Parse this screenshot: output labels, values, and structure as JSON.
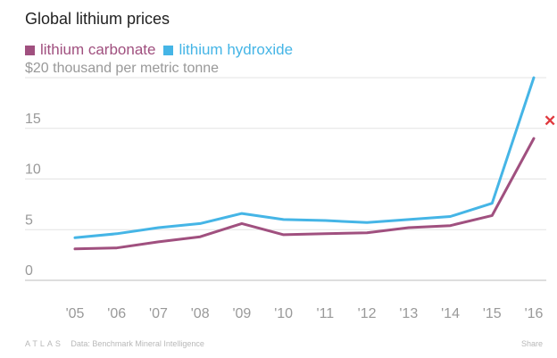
{
  "title": "Global lithium prices",
  "legend": {
    "items": [
      {
        "label": "lithium carbonate",
        "color": "#a0507f"
      },
      {
        "label": "lithium hydroxide",
        "color": "#45b5e6"
      }
    ]
  },
  "footer": {
    "brand": "ATLAS",
    "source": "Data: Benchmark Mineral Intelligence",
    "share": "Share"
  },
  "close_icon": "close-icon",
  "chart_data": {
    "type": "line",
    "title": "Global lithium prices",
    "ylabel": "$20 thousand per metric tonne",
    "xlabel": "",
    "categories": [
      "'05",
      "'06",
      "'07",
      "'08",
      "'09",
      "'10",
      "'11",
      "'12",
      "'13",
      "'14",
      "'15",
      "'16"
    ],
    "series": [
      {
        "name": "lithium carbonate",
        "color": "#a0507f",
        "values": [
          3.1,
          3.2,
          3.8,
          4.3,
          5.6,
          4.5,
          4.6,
          4.7,
          5.2,
          5.4,
          6.4,
          14.0
        ]
      },
      {
        "name": "lithium hydroxide",
        "color": "#45b5e6",
        "values": [
          4.2,
          4.6,
          5.2,
          5.6,
          6.6,
          6.0,
          5.9,
          5.7,
          6.0,
          6.3,
          7.6,
          20.0
        ]
      }
    ],
    "yticks": [
      "0",
      "5",
      "10",
      "15"
    ],
    "ytick_values": [
      0,
      5,
      10,
      15,
      20
    ],
    "ylim": [
      0,
      20
    ],
    "grid": true
  }
}
